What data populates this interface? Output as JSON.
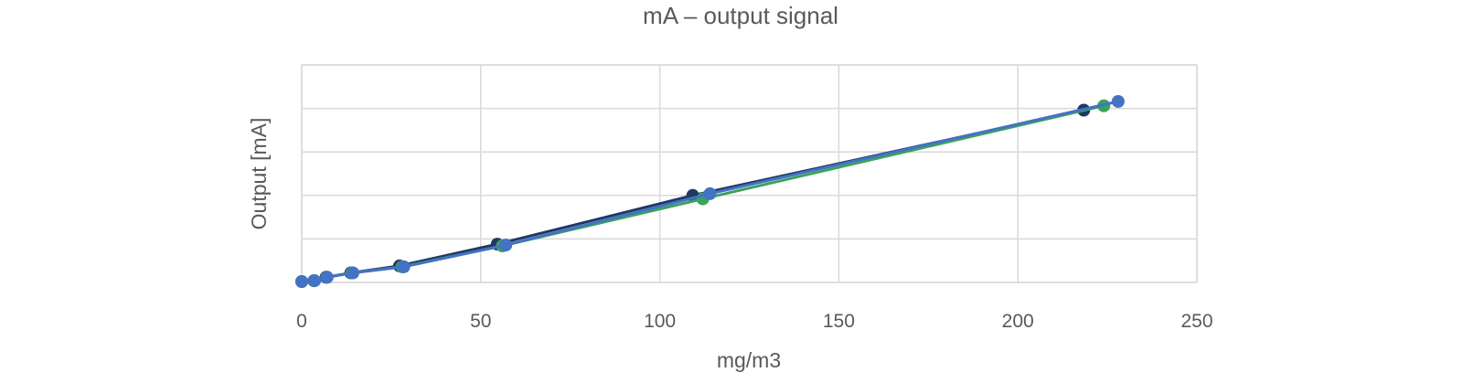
{
  "chart_data": {
    "type": "scatter",
    "title": "mA – output signal",
    "xlabel": "mg/m3",
    "ylabel": "Output [mA]",
    "xlim": [
      0,
      250
    ],
    "ylim": [
      0,
      25
    ],
    "x_ticks": [
      0,
      50,
      100,
      150,
      200,
      250
    ],
    "y_ticks": [
      0,
      5,
      10,
      15,
      20,
      25
    ],
    "y_tick_labels_shown": false,
    "grid": true,
    "legend": "none",
    "series": [
      {
        "color": "#1f3864",
        "x": [
          0,
          3.4,
          6.8,
          13.7,
          27.3,
          54.6,
          109.2,
          218.4
        ],
        "y": [
          0.1,
          0.2,
          0.6,
          1.1,
          1.9,
          4.4,
          10.0,
          19.8
        ]
      },
      {
        "color": "#3aa35b",
        "x": [
          0,
          3.5,
          7.0,
          14.0,
          28.0,
          56.0,
          112.0,
          224.0
        ],
        "y": [
          0.1,
          0.2,
          0.6,
          1.1,
          1.8,
          4.2,
          9.6,
          20.3
        ]
      },
      {
        "color": "#4472c4",
        "x": [
          0,
          3.6,
          7.1,
          14.3,
          28.5,
          57.0,
          114.0,
          228.0
        ],
        "y": [
          0.1,
          0.2,
          0.6,
          1.1,
          1.8,
          4.3,
          10.2,
          20.8
        ]
      }
    ]
  }
}
